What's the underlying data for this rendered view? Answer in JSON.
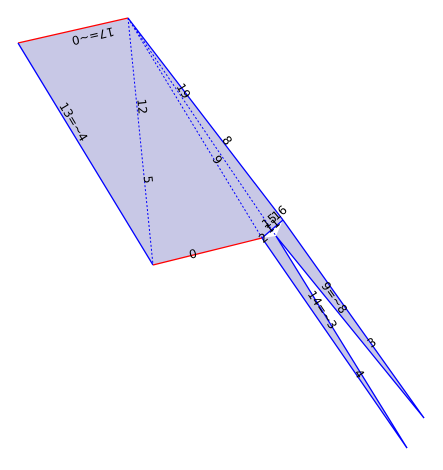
{
  "diagram": {
    "colors": {
      "fill": "#c8c8e6",
      "edge_blue": "#0000ff",
      "edge_red": "#ff0000",
      "label": "#000000"
    },
    "labels": {
      "top_edge": "17=~0",
      "left_edge": "13=~4",
      "bottom_edge": "0",
      "diag_12": "12",
      "diag_5": "5",
      "diag_19": "19",
      "diag_8": "8",
      "diag_9": "9",
      "vertex_2": "2",
      "vertex_11": "11",
      "vertex_16": "16",
      "vertex_15": "15",
      "spike_9_8": "9=~8",
      "spike_14_3": "14=~3",
      "spike_3": "3",
      "spike_4": "4"
    }
  }
}
